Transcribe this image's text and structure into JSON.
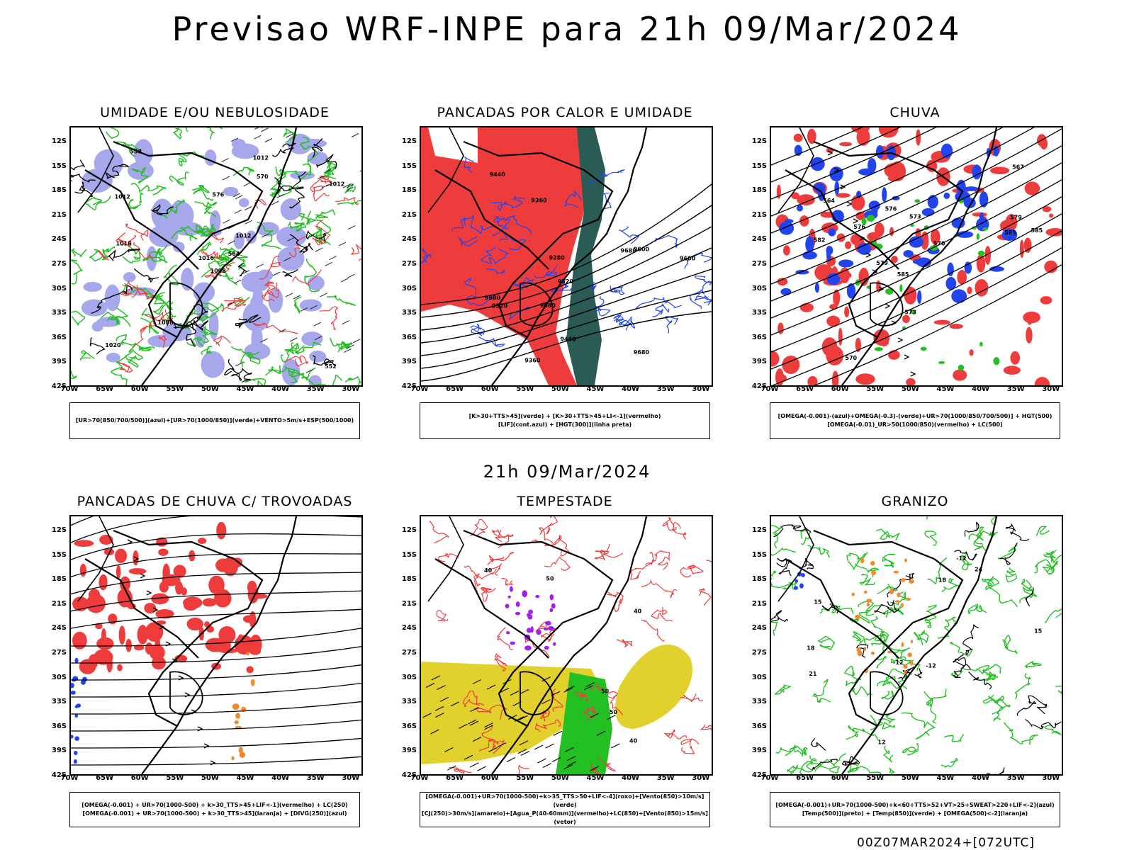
{
  "title": "Previsao WRF-INPE  para 21h 09/Mar/2024",
  "mid_title": "21h 09/Mar/2024",
  "footer": "00Z07MAR2024+[072UTC]",
  "lat_labels": [
    "12S",
    "15S",
    "18S",
    "21S",
    "24S",
    "27S",
    "30S",
    "33S",
    "36S",
    "39S",
    "42S"
  ],
  "lon_labels": [
    "70W",
    "65W",
    "60W",
    "55W",
    "50W",
    "45W",
    "40W",
    "35W",
    "30W"
  ],
  "colors": {
    "humidity_blue": "#a7a7ec",
    "green": "#22c022",
    "red": "#ee3c3c",
    "dark_teal": "#2a5b55",
    "blue": "#2244ee",
    "yellow": "#e2d12c",
    "orange": "#f08a2c",
    "purple": "#a020f0"
  },
  "panels": [
    {
      "id": "umidade",
      "title": "UMIDADE E/OU NEBULOSIDADE",
      "legend": [
        "[UR>70(850/700/500)](azul)+[UR>70(1000/850)](verde)+VENTO>5m/s+ESP(500/1000)"
      ],
      "labels": [
        "1008",
        "1012",
        "1016",
        "1020",
        "1012",
        "1008",
        "1012",
        "576",
        "570",
        "564",
        "558",
        "552",
        "1016",
        "1012"
      ]
    },
    {
      "id": "pancadas-calor",
      "title": "PANCADAS POR CALOR E UMIDADE",
      "legend": [
        "[K>30+TTS>45](verde) + [K>30+TTS>45+LI<-1](vermelho)",
        "[LIF](cont.azul) + [HGT(300)](linha preta)"
      ],
      "labels": [
        "9680",
        "9680",
        "9600",
        "9520",
        "9440",
        "9360",
        "9280",
        "9680",
        "9680",
        "9600",
        "9520",
        "9440",
        "9360"
      ]
    },
    {
      "id": "chuva",
      "title": "CHUVA",
      "legend": [
        "[OMEGA(-0.001)-(azul)+OMEGA(-0.3)-(verde)+UR>70(1000/850/700/500)] + HGT(500)",
        "[OMEGA(-0.01)_UR>50(1000/850)(vermelho) + LC(500)"
      ],
      "labels": [
        "585",
        "585",
        "582",
        "579",
        "576",
        "573",
        "570",
        "567",
        "564",
        "579",
        "576",
        "573",
        "570",
        "585"
      ]
    },
    {
      "id": "pancadas-trovoadas",
      "title": "PANCADAS DE CHUVA C/ TROVOADAS",
      "legend": [
        "[OMEGA(-0.001) + UR>70(1000-500) + k>30_TTS>45+LIF<-1](vermelho) + LC(250)",
        "[OMEGA(-0.001) + UR>70(1000-500) + k>30_TTS>45](laranja) + [DIVG(250)](azul)"
      ],
      "labels": []
    },
    {
      "id": "tempestade",
      "title": "TEMPESTADE",
      "legend": [
        "[OMEGA(-0.001)+UR>70(1000-500)+k>35_TTS>50+LIF<-4](roxo)+[Vento(850)>10m/s](verde)",
        "[CJ(250)>30m/s](amarelo)+[Agua_P(40-60mm)](vermelho)+LC(850)+[Vento(850)>15m/s](vetor)"
      ],
      "labels": [
        "50",
        "40",
        "40",
        "50",
        "40",
        "50"
      ]
    },
    {
      "id": "granizo",
      "title": "GRANIZO",
      "legend": [
        "[OMEGA(-0.001)+UR>70(1000-500)+k<60+TTS>52+VT>25+SWEAT>220+LIF<-2](azul)",
        "[Temp(500)](preto) + [Temp(850)](verde) + [OMEGA(500)<-2](laranja)"
      ],
      "labels": [
        "-12",
        "-12",
        "15",
        "18",
        "21",
        "24",
        "18",
        "15",
        "12",
        "-12"
      ]
    }
  ]
}
